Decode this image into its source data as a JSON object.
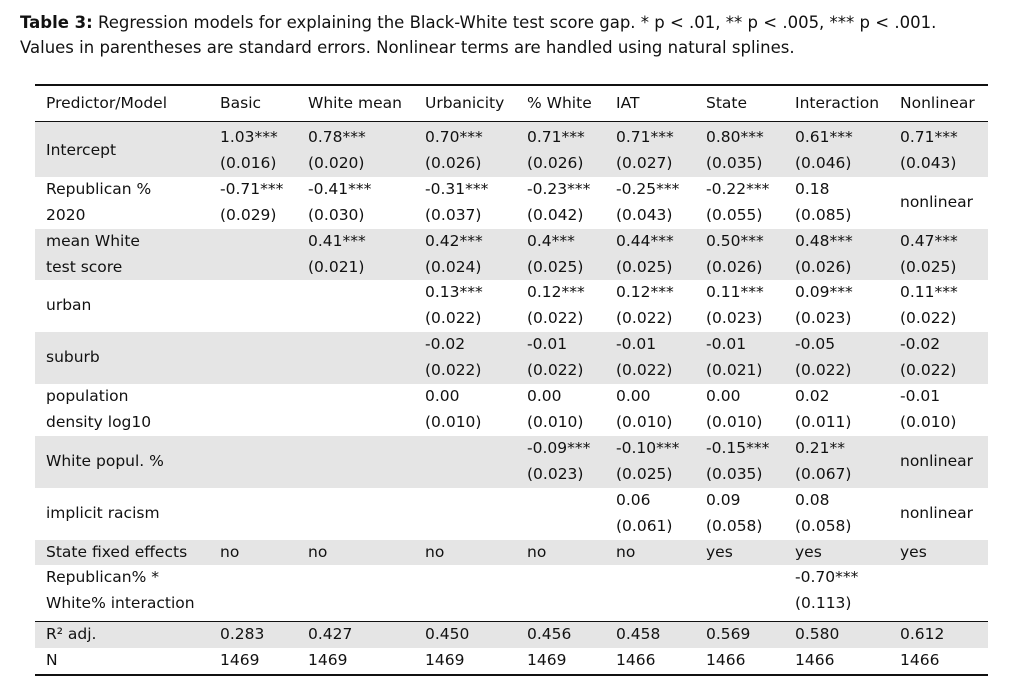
{
  "caption": {
    "label": "Table 3:",
    "lines": [
      "Regression models for explaining the Black-White test score gap. * p < .01, ** p < .005, *** p < .001.",
      "Values in parentheses are standard errors. Nonlinear terms are handled using natural splines."
    ]
  },
  "table": {
    "header": [
      "Predictor/Model",
      "Basic",
      "White mean",
      "Urbanicity",
      "% White",
      "IAT",
      "State",
      "Interaction",
      "Nonlinear"
    ],
    "rows": [
      {
        "label": [
          "Intercept"
        ],
        "cells": [
          [
            "1.03***",
            "(0.016)"
          ],
          [
            "0.78***",
            "(0.020)"
          ],
          [
            "0.70***",
            "(0.026)"
          ],
          [
            "0.71***",
            "(0.026)"
          ],
          [
            "0.71***",
            "(0.027)"
          ],
          [
            "0.80***",
            "(0.035)"
          ],
          [
            "0.61***",
            "(0.046)"
          ],
          [
            "0.71***",
            "(0.043)"
          ]
        ]
      },
      {
        "label": [
          "Republican %",
          "2020"
        ],
        "cells": [
          [
            "-0.71***",
            "(0.029)"
          ],
          [
            "-0.41***",
            "(0.030)"
          ],
          [
            "-0.31***",
            "(0.037)"
          ],
          [
            "-0.23***",
            "(0.042)"
          ],
          [
            "-0.25***",
            "(0.043)"
          ],
          [
            "-0.22***",
            "(0.055)"
          ],
          [
            "0.18",
            "(0.085)"
          ],
          [
            "nonlinear"
          ]
        ]
      },
      {
        "label": [
          "mean White",
          "test score"
        ],
        "cells": [
          [],
          [
            "0.41***",
            "(0.021)"
          ],
          [
            "0.42***",
            "(0.024)"
          ],
          [
            "0.4***",
            "(0.025)"
          ],
          [
            "0.44***",
            "(0.025)"
          ],
          [
            "0.50***",
            "(0.026)"
          ],
          [
            "0.48***",
            "(0.026)"
          ],
          [
            "0.47***",
            "(0.025)"
          ]
        ]
      },
      {
        "label": [
          "urban"
        ],
        "cells": [
          [],
          [],
          [
            "0.13***",
            "(0.022)"
          ],
          [
            "0.12***",
            "(0.022)"
          ],
          [
            "0.12***",
            "(0.022)"
          ],
          [
            "0.11***",
            "(0.023)"
          ],
          [
            "0.09***",
            "(0.023)"
          ],
          [
            "0.11***",
            "(0.022)"
          ]
        ]
      },
      {
        "label": [
          "suburb"
        ],
        "cells": [
          [],
          [],
          [
            "-0.02",
            "(0.022)"
          ],
          [
            "-0.01",
            "(0.022)"
          ],
          [
            "-0.01",
            "(0.022)"
          ],
          [
            "-0.01",
            "(0.021)"
          ],
          [
            "-0.05",
            "(0.022)"
          ],
          [
            "-0.02",
            "(0.022)"
          ]
        ]
      },
      {
        "label": [
          "population",
          "density log10"
        ],
        "cells": [
          [],
          [],
          [
            "0.00",
            "(0.010)"
          ],
          [
            "0.00",
            "(0.010)"
          ],
          [
            "0.00",
            "(0.010)"
          ],
          [
            "0.00",
            "(0.010)"
          ],
          [
            "0.02",
            "(0.011)"
          ],
          [
            "-0.01",
            "(0.010)"
          ]
        ]
      },
      {
        "label": [
          "White popul. %"
        ],
        "cells": [
          [],
          [],
          [],
          [
            "-0.09***",
            "(0.023)"
          ],
          [
            "-0.10***",
            "(0.025)"
          ],
          [
            "-0.15***",
            "(0.035)"
          ],
          [
            "0.21**",
            "(0.067)"
          ],
          [
            "nonlinear"
          ]
        ]
      },
      {
        "label": [
          "implicit racism"
        ],
        "cells": [
          [],
          [],
          [],
          [],
          [
            "0.06",
            "(0.061)"
          ],
          [
            "0.09",
            "(0.058)"
          ],
          [
            "0.08",
            "(0.058)"
          ],
          [
            "nonlinear"
          ]
        ]
      },
      {
        "label": [
          "State fixed effects"
        ],
        "cells": [
          [
            "no"
          ],
          [
            "no"
          ],
          [
            "no"
          ],
          [
            "no"
          ],
          [
            "no"
          ],
          [
            "yes"
          ],
          [
            "yes"
          ],
          [
            "yes"
          ]
        ]
      },
      {
        "label": [
          "Republican% *",
          "White% interaction"
        ],
        "cells": [
          [],
          [],
          [],
          [],
          [],
          [],
          [
            "-0.70***",
            "(0.113)"
          ],
          []
        ]
      }
    ],
    "stats": [
      {
        "label": [
          "R² adj."
        ],
        "cells": [
          [
            "0.283"
          ],
          [
            "0.427"
          ],
          [
            "0.450"
          ],
          [
            "0.456"
          ],
          [
            "0.458"
          ],
          [
            "0.569"
          ],
          [
            "0.580"
          ],
          [
            "0.612"
          ]
        ]
      },
      {
        "label": [
          "N"
        ],
        "cells": [
          [
            "1469"
          ],
          [
            "1469"
          ],
          [
            "1469"
          ],
          [
            "1469"
          ],
          [
            "1466"
          ],
          [
            "1466"
          ],
          [
            "1466"
          ],
          [
            "1466"
          ]
        ]
      }
    ]
  }
}
